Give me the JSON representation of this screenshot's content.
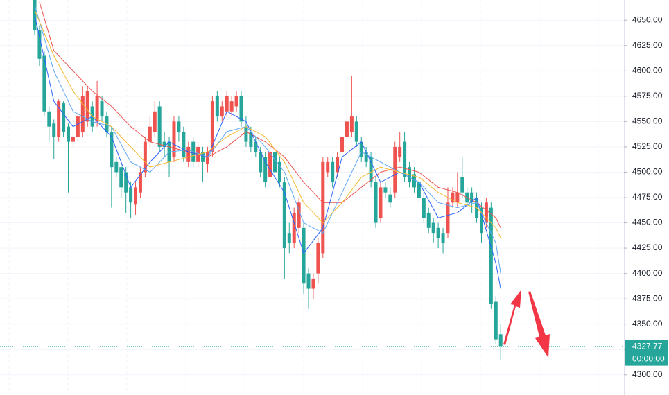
{
  "chart_data": {
    "type": "candlestick",
    "up_color": "#ef5350",
    "down_color": "#26a69a",
    "ylim": [
      4280,
      4670
    ],
    "yticks": [
      {
        "value": 4300,
        "label": "4300.00"
      },
      {
        "value": 4325,
        "label": "4325.00"
      },
      {
        "value": 4350,
        "label": "4350.00"
      },
      {
        "value": 4375,
        "label": "4375.00"
      },
      {
        "value": 4400,
        "label": "4400.00"
      },
      {
        "value": 4425,
        "label": "4425.00"
      },
      {
        "value": 4450,
        "label": "4450.00"
      },
      {
        "value": 4475,
        "label": "4475.00"
      },
      {
        "value": 4500,
        "label": "4500.00"
      },
      {
        "value": 4525,
        "label": "4525.00"
      },
      {
        "value": 4550,
        "label": "4550.00"
      },
      {
        "value": 4575,
        "label": "4575.00"
      },
      {
        "value": 4600,
        "label": "4600.00"
      },
      {
        "value": 4625,
        "label": "4625.00"
      },
      {
        "value": 4650,
        "label": "4650.00"
      }
    ],
    "grid": true,
    "open": [
      4670,
      4640,
      4615,
      4560,
      4548,
      4535,
      4568,
      4545,
      4530,
      4535,
      4540,
      4550,
      4565,
      4550,
      4570,
      4555,
      4540,
      4510,
      4505,
      4500,
      4485,
      4468,
      4480,
      4500,
      4530,
      4540,
      4565,
      4530,
      4530,
      4515,
      4550,
      4540,
      4510,
      4530,
      4510,
      4520,
      4508,
      4520,
      4575,
      4555,
      4560,
      4560,
      4565,
      4575,
      4545,
      4540,
      4530,
      4520,
      4515,
      4495,
      4520,
      4510,
      4490,
      4440,
      4430,
      4445,
      4445,
      4400,
      4385,
      4400,
      4420,
      4500,
      4510,
      4500,
      4520,
      4535,
      4540,
      4550,
      4530,
      4520,
      4515,
      4490,
      4455,
      4485,
      4478,
      4480,
      4515,
      4530,
      4505,
      4498,
      4490,
      4475,
      4460,
      4450,
      4445,
      4440,
      4440,
      4470,
      4470,
      4495,
      4480,
      4480,
      4475,
      4465,
      4450,
      4465,
      4372,
      4340
    ],
    "high": [
      4672,
      4645,
      4620,
      4565,
      4552,
      4572,
      4570,
      4548,
      4540,
      4560,
      4585,
      4585,
      4570,
      4590,
      4575,
      4560,
      4545,
      4515,
      4510,
      4505,
      4490,
      4490,
      4505,
      4535,
      4555,
      4570,
      4570,
      4540,
      4535,
      4555,
      4555,
      4545,
      4530,
      4535,
      4530,
      4525,
      4525,
      4575,
      4580,
      4570,
      4580,
      4575,
      4580,
      4580,
      4555,
      4545,
      4535,
      4525,
      4520,
      4525,
      4525,
      4515,
      4495,
      4450,
      4465,
      4475,
      4450,
      4405,
      4400,
      4435,
      4515,
      4515,
      4515,
      4520,
      4540,
      4560,
      4595,
      4555,
      4535,
      4525,
      4520,
      4495,
      4490,
      4490,
      4485,
      4530,
      4540,
      4540,
      4510,
      4505,
      4495,
      4480,
      4465,
      4455,
      4450,
      4445,
      4485,
      4485,
      4500,
      4515,
      4485,
      4485,
      4480,
      4470,
      4475,
      4470,
      4378,
      4350
    ],
    "low": [
      4635,
      4605,
      4555,
      4530,
      4513,
      4530,
      4535,
      4480,
      4525,
      4530,
      4535,
      4545,
      4540,
      4545,
      4550,
      4535,
      4465,
      4495,
      4475,
      4460,
      4455,
      4458,
      4475,
      4495,
      4525,
      4535,
      4520,
      4515,
      4495,
      4510,
      4530,
      4510,
      4505,
      4505,
      4505,
      4490,
      4500,
      4515,
      4550,
      4550,
      4555,
      4555,
      4560,
      4545,
      4525,
      4520,
      4515,
      4495,
      4485,
      4490,
      4495,
      4485,
      4395,
      4420,
      4425,
      4440,
      4380,
      4365,
      4375,
      4390,
      4415,
      4495,
      4485,
      4495,
      4515,
      4530,
      4535,
      4525,
      4510,
      4505,
      4485,
      4445,
      4450,
      4475,
      4465,
      4475,
      4510,
      4490,
      4485,
      4480,
      4470,
      4450,
      4440,
      4430,
      4425,
      4420,
      4435,
      4465,
      4465,
      4475,
      4465,
      4460,
      4450,
      4430,
      4445,
      4365,
      4330,
      4315
    ],
    "close": [
      4640,
      4612,
      4560,
      4545,
      4535,
      4570,
      4540,
      4530,
      4535,
      4555,
      4575,
      4580,
      4545,
      4575,
      4555,
      4540,
      4505,
      4500,
      4485,
      4480,
      4470,
      4485,
      4500,
      4530,
      4545,
      4560,
      4525,
      4525,
      4510,
      4550,
      4540,
      4515,
      4525,
      4510,
      4525,
      4510,
      4520,
      4570,
      4555,
      4565,
      4575,
      4570,
      4575,
      4550,
      4530,
      4525,
      4520,
      4500,
      4490,
      4520,
      4500,
      4490,
      4425,
      4430,
      4460,
      4470,
      4390,
      4385,
      4395,
      4430,
      4510,
      4510,
      4490,
      4515,
      4535,
      4550,
      4555,
      4530,
      4515,
      4510,
      4490,
      4450,
      4485,
      4480,
      4470,
      4525,
      4525,
      4495,
      4490,
      4485,
      4475,
      4455,
      4445,
      4440,
      4435,
      4430,
      4470,
      4480,
      4480,
      4480,
      4470,
      4470,
      4455,
      4440,
      4470,
      4370,
      4335,
      4327.77
    ],
    "series": [
      {
        "color": "#2962ff",
        "x": [
          0,
          4,
          8,
          12,
          16,
          20,
          24,
          28,
          32,
          36,
          40,
          44,
          48,
          52,
          56,
          60,
          64,
          68,
          72,
          76,
          80,
          84,
          88,
          92,
          96,
          97
        ],
        "values": [
          4655,
          4570,
          4545,
          4555,
          4535,
          4485,
          4510,
          4530,
          4520,
          4515,
          4560,
          4550,
          4510,
          4480,
          4420,
          4445,
          4515,
          4530,
          4490,
          4500,
          4490,
          4455,
          4460,
          4475,
          4410,
          4385
        ]
      },
      {
        "color": "#5fa8f5",
        "x": [
          0,
          4,
          8,
          12,
          16,
          20,
          24,
          28,
          32,
          36,
          40,
          44,
          48,
          52,
          56,
          60,
          64,
          68,
          72,
          76,
          80,
          84,
          88,
          92,
          96,
          97
        ],
        "values": [
          4665,
          4600,
          4560,
          4550,
          4545,
          4510,
          4500,
          4520,
          4522,
          4515,
          4540,
          4545,
          4525,
          4500,
          4450,
          4440,
          4480,
          4520,
          4510,
          4500,
          4490,
          4470,
          4465,
          4470,
          4430,
          4400
        ]
      },
      {
        "color": "#f5b82e",
        "x": [
          0,
          4,
          8,
          12,
          16,
          20,
          24,
          28,
          32,
          36,
          40,
          44,
          48,
          52,
          56,
          60,
          64,
          68,
          72,
          76,
          80,
          84,
          88,
          92,
          96,
          97
        ],
        "values": [
          4660,
          4615,
          4580,
          4555,
          4545,
          4525,
          4505,
          4510,
          4515,
          4520,
          4535,
          4545,
          4535,
          4510,
          4470,
          4450,
          4470,
          4495,
          4505,
          4500,
          4495,
          4480,
          4470,
          4465,
          4445,
          4435
        ]
      },
      {
        "color": "#ef5350",
        "x": [
          1,
          4,
          8,
          12,
          16,
          20,
          24,
          28,
          32,
          36,
          40,
          44,
          48,
          52,
          56,
          60,
          64,
          68,
          72,
          76,
          80,
          84,
          88,
          92,
          96,
          97
        ],
        "values": [
          4668,
          4620,
          4600,
          4580,
          4565,
          4545,
          4530,
          4525,
          4520,
          4515,
          4525,
          4540,
          4530,
          4515,
          4490,
          4470,
          4470,
          4485,
          4500,
          4505,
          4500,
          4485,
          4480,
          4470,
          4455,
          4445
        ]
      }
    ],
    "last_price": 4327.77,
    "countdown": "00:00:00"
  }
}
